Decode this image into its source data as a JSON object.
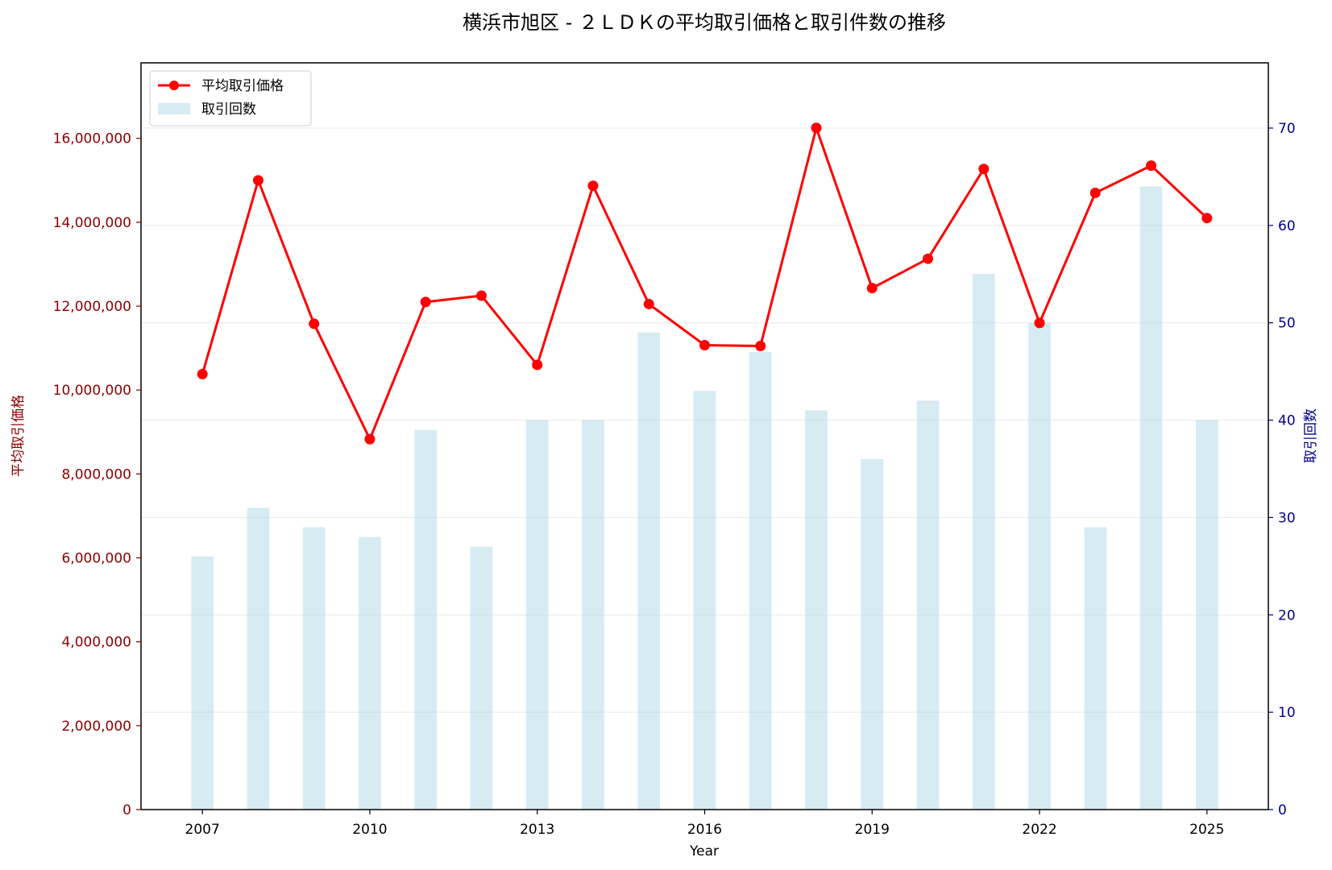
{
  "chart_data": {
    "type": "bar+line",
    "title": "横浜市旭区 - ２ＬＤＫの平均取引価格と取引件数の推移",
    "xlabel": "Year",
    "ylabel_left": "平均取引価格",
    "ylabel_right": "取引回数",
    "x": [
      2007,
      2008,
      2009,
      2010,
      2011,
      2012,
      2013,
      2014,
      2015,
      2016,
      2017,
      2018,
      2019,
      2020,
      2021,
      2022,
      2023,
      2024,
      2025
    ],
    "x_ticks": [
      "2007",
      "2010",
      "2013",
      "2016",
      "2019",
      "2022",
      "2025"
    ],
    "y_left_ticks": [
      "0",
      "2,000,000",
      "4,000,000",
      "6,000,000",
      "8,000,000",
      "10,000,000",
      "12,000,000",
      "14,000,000",
      "16,000,000"
    ],
    "y_right_ticks": [
      "0",
      "10",
      "20",
      "30",
      "40",
      "50",
      "60",
      "70"
    ],
    "ylim_left": [
      0,
      17800000
    ],
    "ylim_right": [
      0,
      76.7
    ],
    "xlim": [
      2005.9,
      2026.1
    ],
    "grid": true,
    "legend_position": "top-left",
    "series": [
      {
        "name": "平均取引価格",
        "kind": "line",
        "axis": "left",
        "color": "#ff0000",
        "values": [
          10380000,
          15000000,
          11580000,
          8830000,
          12100000,
          12250000,
          10600000,
          14870000,
          12050000,
          11070000,
          11050000,
          16250000,
          12430000,
          13130000,
          15270000,
          11600000,
          14700000,
          15350000,
          14100000
        ]
      },
      {
        "name": "取引回数",
        "kind": "bar",
        "axis": "right",
        "color": "#add8e6",
        "values": [
          26,
          31,
          29,
          28,
          39,
          27,
          40,
          40,
          49,
          43,
          47,
          41,
          36,
          42,
          55,
          50,
          29,
          64,
          40
        ]
      }
    ],
    "colors": {
      "left_axis": "#8b0000",
      "right_axis": "#00008b"
    }
  }
}
